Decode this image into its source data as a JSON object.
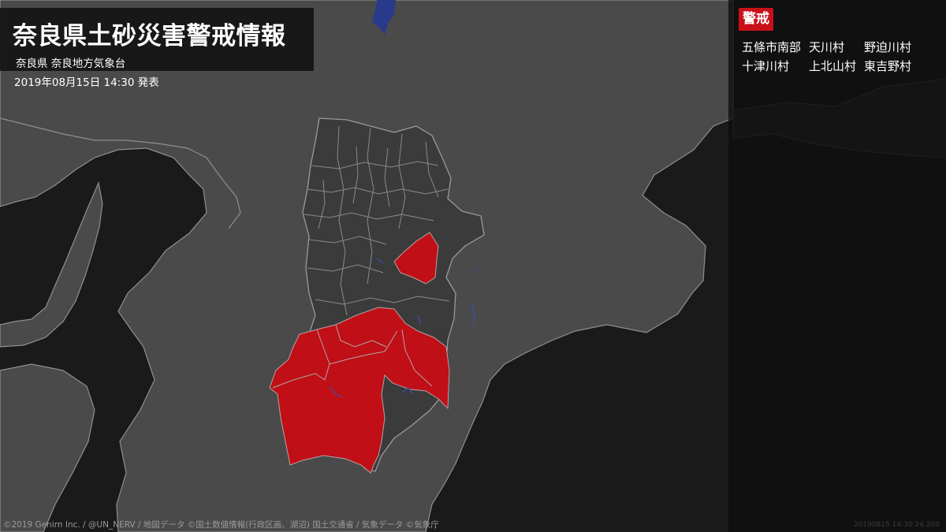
{
  "header": {
    "title": "奈良県土砂災害警戒情報",
    "subtitle": "奈良県 奈良地方気象台",
    "issued": "2019年08月15日 14:30 発表"
  },
  "panel": {
    "level_label": "警戒",
    "level_color": "#c8101a",
    "areas": [
      "五條市南部",
      "天川村",
      "野迫川村",
      "十津川村",
      "上北山村",
      "東吉野村"
    ]
  },
  "footer": {
    "credit": "©2019 Gehirn Inc. / @UN_NERV / 地図データ ©国土数値情報(行政区画、湖沼) 国土交通省 / 気象データ ©気象庁",
    "timestamp": "20190815 14:30:24.200"
  },
  "map": {
    "sea_color": "#1a1a1a",
    "land_color": "#4a4a4a",
    "nara_color": "#3b3b3b",
    "warning_color": "#c00f17",
    "border_color": "#9a9a9a",
    "lake_color": "#2a3a8a"
  }
}
